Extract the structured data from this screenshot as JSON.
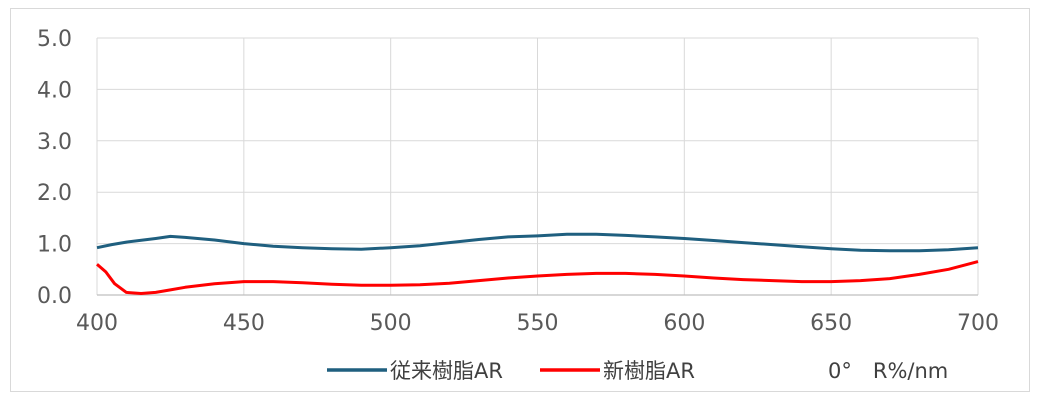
{
  "chart_data": {
    "type": "line",
    "xlim": [
      400,
      700
    ],
    "ylim": [
      0,
      5
    ],
    "x_ticks": [
      "400",
      "450",
      "500",
      "550",
      "600",
      "650",
      "700"
    ],
    "y_ticks": [
      "0.0",
      "1.0",
      "2.0",
      "3.0",
      "4.0",
      "5.0"
    ],
    "grid": "vertical and horizontal gridlines",
    "legend_position": "bottom",
    "unit_label": "0°　R%/nm",
    "series": [
      {
        "name": "従来樹脂AR",
        "color": "#1f5f7f",
        "x": [
          400,
          405,
          410,
          420,
          425,
          430,
          440,
          450,
          460,
          470,
          480,
          490,
          500,
          510,
          520,
          530,
          540,
          550,
          560,
          570,
          580,
          590,
          600,
          610,
          620,
          630,
          640,
          650,
          660,
          670,
          680,
          690,
          700
        ],
        "y": [
          0.92,
          0.98,
          1.03,
          1.1,
          1.14,
          1.12,
          1.07,
          1.0,
          0.95,
          0.92,
          0.9,
          0.89,
          0.92,
          0.96,
          1.02,
          1.08,
          1.13,
          1.15,
          1.18,
          1.18,
          1.16,
          1.13,
          1.1,
          1.06,
          1.02,
          0.98,
          0.94,
          0.9,
          0.87,
          0.86,
          0.86,
          0.88,
          0.92
        ]
      },
      {
        "name": "新樹脂AR",
        "color": "#ff0000",
        "x": [
          400,
          403,
          406,
          410,
          415,
          420,
          425,
          430,
          440,
          450,
          460,
          470,
          480,
          490,
          500,
          510,
          520,
          530,
          540,
          550,
          560,
          570,
          580,
          590,
          600,
          610,
          620,
          630,
          640,
          650,
          660,
          670,
          680,
          690,
          700
        ],
        "y": [
          0.6,
          0.45,
          0.22,
          0.05,
          0.03,
          0.05,
          0.1,
          0.15,
          0.22,
          0.26,
          0.26,
          0.24,
          0.21,
          0.19,
          0.19,
          0.2,
          0.23,
          0.28,
          0.33,
          0.37,
          0.4,
          0.42,
          0.42,
          0.4,
          0.37,
          0.33,
          0.3,
          0.28,
          0.26,
          0.26,
          0.28,
          0.32,
          0.4,
          0.5,
          0.65
        ]
      }
    ]
  }
}
